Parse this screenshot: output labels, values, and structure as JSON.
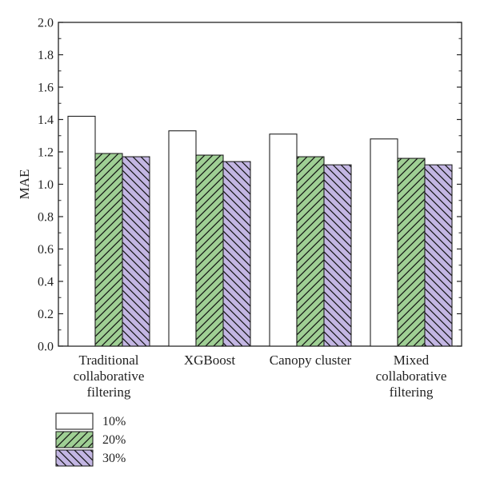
{
  "chart_data": {
    "type": "bar",
    "title": "",
    "xlabel": "",
    "ylabel": "MAE",
    "ylim": [
      0,
      2.0
    ],
    "yticks": [
      "0.0",
      "0.2",
      "0.4",
      "0.6",
      "0.8",
      "1.0",
      "1.2",
      "1.4",
      "1.6",
      "1.8",
      "2.0"
    ],
    "categories": [
      [
        "Traditional",
        "collaborative",
        "filtering"
      ],
      [
        "XGBoost"
      ],
      [
        "Canopy cluster"
      ],
      [
        "Mixed",
        "collaborative",
        "filtering"
      ]
    ],
    "series": [
      {
        "name": "10%",
        "values": [
          1.42,
          1.33,
          1.31,
          1.28
        ],
        "fill": "#ffffff",
        "pattern": "none"
      },
      {
        "name": "20%",
        "values": [
          1.19,
          1.18,
          1.17,
          1.16
        ],
        "fill": "#9fcf94",
        "pattern": "forward-hatch"
      },
      {
        "name": "30%",
        "values": [
          1.17,
          1.14,
          1.12,
          1.12
        ],
        "fill": "#c3b6e3",
        "pattern": "back-hatch"
      }
    ],
    "grid": false,
    "legend_position": "bottom-left"
  }
}
